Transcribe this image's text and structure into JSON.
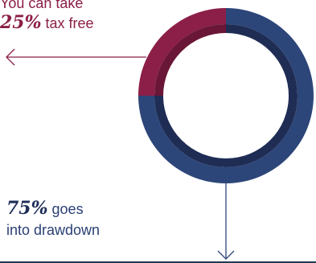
{
  "tax_free": {
    "line1": "You can take",
    "percent": "25%",
    "rest": " tax free",
    "value": 0.25,
    "color": "#8b1f47"
  },
  "drawdown": {
    "percent": "75%",
    "rest": " goes",
    "line2": "into drawdown",
    "value": 0.75,
    "color": "#2d4679"
  },
  "colors": {
    "inner_ring": "#1f2d55",
    "inner_ring_taxfree": "#6a1636",
    "arrow": "#2d4679",
    "baseline": "#1f3b52"
  }
}
